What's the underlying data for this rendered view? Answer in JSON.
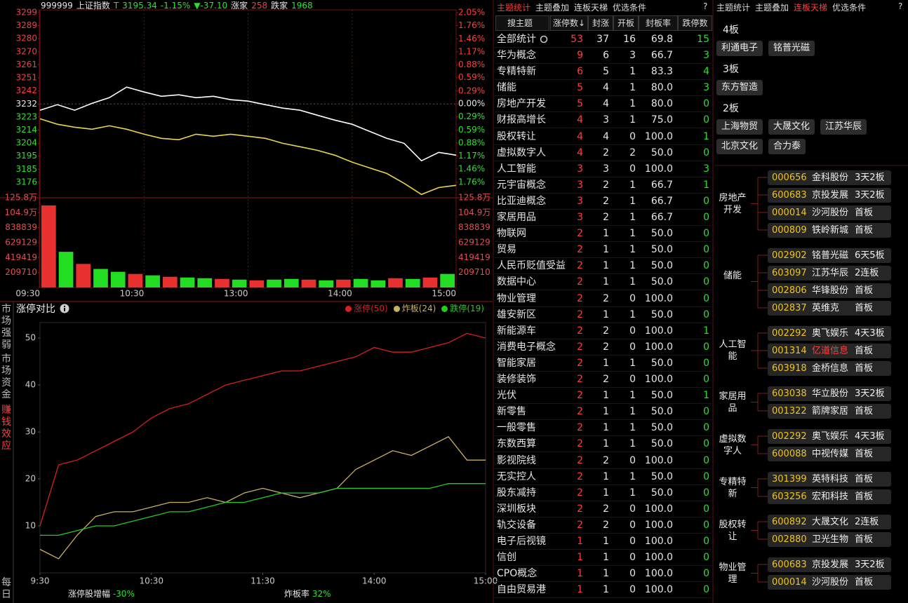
{
  "header": {
    "code": "999999",
    "name": "上证指数",
    "flag": "T",
    "price": "3195.34",
    "pct": "-1.15%",
    "change": "▼-37.10",
    "up_label": "涨家",
    "up_count": "258",
    "down_label": "跌家",
    "down_count": "1968"
  },
  "chart_data": [
    {
      "type": "line",
      "x": [
        0,
        10,
        20,
        30,
        40,
        50,
        60,
        70,
        80,
        90,
        100,
        110,
        120,
        130,
        140,
        150,
        160,
        170,
        180,
        190,
        200,
        210,
        220,
        230,
        240
      ],
      "xlim": [
        0,
        240
      ],
      "xticks": [
        {
          "value": 0,
          "label": "09:30"
        },
        {
          "value": 60,
          "label": "10:30"
        },
        {
          "value": 120,
          "label": "13:00"
        },
        {
          "value": 180,
          "label": "14:00"
        },
        {
          "value": 240,
          "label": "15:00"
        }
      ],
      "ylim": [
        3175.6,
        3298.7
      ],
      "yticks": [
        {
          "value": 3298.7,
          "label": "3299"
        },
        {
          "value": 3289.3,
          "label": "3289"
        },
        {
          "value": 3279.8,
          "label": "3280"
        },
        {
          "value": 3270.3,
          "label": "3270"
        },
        {
          "value": 3260.9,
          "label": "3261"
        },
        {
          "value": 3251.4,
          "label": "3251"
        },
        {
          "value": 3241.9,
          "label": "3242"
        },
        {
          "value": 3232.44,
          "label": "3232"
        },
        {
          "value": 3223.0,
          "label": "3223"
        },
        {
          "value": 3213.5,
          "label": "3214"
        },
        {
          "value": 3204.0,
          "label": "3204"
        },
        {
          "value": 3194.6,
          "label": "3195"
        },
        {
          "value": 3185.1,
          "label": "3185"
        },
        {
          "value": 3175.6,
          "label": "3176"
        }
      ],
      "y2lim": [
        -1.76,
        2.05
      ],
      "y2ticks": [
        {
          "value": 2.05,
          "label": "2.05%"
        },
        {
          "value": 1.76,
          "label": "1.76%"
        },
        {
          "value": 1.46,
          "label": "1.46%"
        },
        {
          "value": 1.17,
          "label": "1.17%"
        },
        {
          "value": 0.88,
          "label": "0.88%"
        },
        {
          "value": 0.59,
          "label": "0.59%"
        },
        {
          "value": 0.29,
          "label": "0.29%"
        },
        {
          "value": 0,
          "label": "0.00%"
        },
        {
          "value": -0.29,
          "label": "0.29%"
        },
        {
          "value": -0.59,
          "label": "0.59%"
        },
        {
          "value": -0.88,
          "label": "0.88%"
        },
        {
          "value": -1.17,
          "label": "1.17%"
        },
        {
          "value": -1.46,
          "label": "1.46%"
        },
        {
          "value": -1.76,
          "label": "1.76%"
        }
      ],
      "series": [
        {
          "color": "#ffffff",
          "values": [
            3227.9,
            3231.9,
            3227.9,
            3232.9,
            3237.0,
            3244.7,
            3241.1,
            3238.0,
            3239.1,
            3237.0,
            3238.0,
            3235.5,
            3234.5,
            3231.9,
            3229.4,
            3227.9,
            3224.3,
            3220.7,
            3217.7,
            3212.6,
            3207.5,
            3203.9,
            3191.2,
            3197.3,
            3195.3
          ]
        },
        {
          "color": "#e8d44d",
          "values": [
            3221.7,
            3217.7,
            3215.6,
            3214.1,
            3216.6,
            3214.1,
            3210.5,
            3207.5,
            3206.5,
            3210.5,
            3209.0,
            3210.5,
            3209.0,
            3207.5,
            3203.9,
            3201.4,
            3198.8,
            3195.3,
            3190.2,
            3186.1,
            3182.0,
            3174.9,
            3166.8,
            3171.8,
            3173.4
          ]
        }
      ],
      "volume": {
        "ylim": [
          0,
          1258000
        ],
        "yticks": [
          {
            "value": 1258000,
            "label": "125.8万"
          },
          {
            "value": 1049000,
            "label": "104.9万"
          },
          838839,
          629129,
          419419,
          209710
        ],
        "values": [
          1150000,
          500000,
          330000,
          260000,
          220000,
          190000,
          170000,
          150000,
          140000,
          130000,
          120000,
          110000,
          100000,
          110000,
          120000,
          110000,
          100000,
          110000,
          120000,
          100000,
          130000,
          120000,
          140000,
          190000
        ],
        "colors": [
          "#e8312f",
          "#22dd22",
          "#e8312f",
          "#22dd22",
          "#22dd22",
          "#e8312f",
          "#22dd22",
          "#e8312f",
          "#22dd22",
          "#22dd22",
          "#e8312f",
          "#22dd22",
          "#e8312f",
          "#22dd22",
          "#22dd22",
          "#e8312f",
          "#22dd22",
          "#e8312f",
          "#22dd22",
          "#22dd22",
          "#e8312f",
          "#22dd22",
          "#e8312f",
          "#22dd22"
        ]
      }
    },
    {
      "type": "line",
      "title": "涨停对比",
      "x": [
        0,
        10,
        20,
        30,
        40,
        50,
        60,
        70,
        80,
        90,
        100,
        110,
        120,
        130,
        140,
        150,
        160,
        170,
        180,
        190,
        200,
        210,
        220,
        230,
        240
      ],
      "xlim": [
        0,
        240
      ],
      "xticks": [
        {
          "value": 0,
          "label": "9:30"
        },
        {
          "value": 60,
          "label": "10:30"
        },
        {
          "value": 120,
          "label": "11:30"
        },
        {
          "value": 180,
          "label": "14:00"
        },
        {
          "value": 240,
          "label": "15:00"
        }
      ],
      "ylim": [
        0,
        53
      ],
      "yticks": [
        10,
        20,
        30,
        40,
        50
      ],
      "series": [
        {
          "name": "涨停(50)",
          "color": "#d42020",
          "values": [
            10,
            23,
            24,
            26,
            28,
            30,
            33,
            35,
            36,
            38,
            40,
            41,
            42,
            43,
            43,
            44,
            45,
            46,
            48,
            47,
            47,
            48,
            49,
            51,
            50
          ]
        },
        {
          "name": "炸板(24)",
          "color": "#c8b060",
          "values": [
            5,
            3,
            8,
            12,
            13,
            13,
            14,
            15,
            15,
            16,
            15,
            17,
            18,
            17,
            16,
            17,
            18,
            22,
            24,
            26,
            25,
            27,
            29,
            24,
            24
          ]
        },
        {
          "name": "跌停(19)",
          "color": "#22cc22",
          "values": [
            8,
            8,
            9,
            10,
            10,
            11,
            12,
            13,
            13,
            14,
            15,
            15,
            16,
            17,
            17,
            17,
            18,
            18,
            18,
            18,
            18,
            18,
            19,
            19,
            19
          ]
        }
      ]
    }
  ],
  "side_tabs": [
    "市场强弱",
    "市场资金",
    "赚钱效应",
    "每日"
  ],
  "bottom_stats": {
    "growth_label": "涨停股增幅",
    "growth": "-30%",
    "broken_label": "炸板率",
    "broken": "32%"
  },
  "theme_table": {
    "tabs": [
      "主题统计",
      "主题叠加",
      "连板天梯",
      "优选条件"
    ],
    "help": "?",
    "columns": [
      "搜主题",
      "涨停数↓",
      "封涨",
      "开板",
      "封板率",
      "跌停数"
    ],
    "total": [
      "全部统计",
      "53",
      "37",
      "16",
      "69.8",
      "15"
    ],
    "rows": [
      [
        "华为概念",
        "9",
        "6",
        "3",
        "66.7",
        "3"
      ],
      [
        "专精特新",
        "6",
        "5",
        "1",
        "83.3",
        "4"
      ],
      [
        "储能",
        "5",
        "4",
        "1",
        "80.0",
        "3"
      ],
      [
        "房地产开发",
        "5",
        "4",
        "1",
        "80.0",
        "0"
      ],
      [
        "财报高增长",
        "4",
        "3",
        "1",
        "75.0",
        "0"
      ],
      [
        "股权转让",
        "4",
        "4",
        "0",
        "100.0",
        "1"
      ],
      [
        "虚拟数字人",
        "4",
        "2",
        "2",
        "50.0",
        "0"
      ],
      [
        "人工智能",
        "3",
        "3",
        "0",
        "100.0",
        "3"
      ],
      [
        "元宇宙概念",
        "3",
        "2",
        "1",
        "66.7",
        "1"
      ],
      [
        "比亚迪概念",
        "3",
        "2",
        "1",
        "66.7",
        "0"
      ],
      [
        "家居用品",
        "3",
        "2",
        "1",
        "66.7",
        "0"
      ],
      [
        "物联网",
        "2",
        "1",
        "1",
        "50.0",
        "0"
      ],
      [
        "贸易",
        "2",
        "1",
        "1",
        "50.0",
        "0"
      ],
      [
        "人民币贬值受益",
        "2",
        "1",
        "1",
        "50.0",
        "0"
      ],
      [
        "数据中心",
        "2",
        "1",
        "1",
        "50.0",
        "0"
      ],
      [
        "物业管理",
        "2",
        "2",
        "0",
        "100.0",
        "0"
      ],
      [
        "雄安新区",
        "2",
        "1",
        "1",
        "50.0",
        "0"
      ],
      [
        "新能源车",
        "2",
        "2",
        "0",
        "100.0",
        "1"
      ],
      [
        "消费电子概念",
        "2",
        "2",
        "0",
        "100.0",
        "0"
      ],
      [
        "智能家居",
        "2",
        "1",
        "1",
        "50.0",
        "0"
      ],
      [
        "装修装饰",
        "2",
        "2",
        "0",
        "100.0",
        "0"
      ],
      [
        "光伏",
        "2",
        "1",
        "1",
        "50.0",
        "1"
      ],
      [
        "新零售",
        "2",
        "1",
        "1",
        "50.0",
        "0"
      ],
      [
        "一般零售",
        "2",
        "1",
        "1",
        "50.0",
        "0"
      ],
      [
        "东数西算",
        "2",
        "1",
        "1",
        "50.0",
        "0"
      ],
      [
        "影视院线",
        "2",
        "2",
        "0",
        "100.0",
        "0"
      ],
      [
        "无实控人",
        "2",
        "1",
        "1",
        "50.0",
        "0"
      ],
      [
        "股东减持",
        "2",
        "1",
        "1",
        "50.0",
        "0"
      ],
      [
        "深圳板块",
        "2",
        "2",
        "0",
        "100.0",
        "0"
      ],
      [
        "轨交设备",
        "2",
        "2",
        "0",
        "100.0",
        "0"
      ],
      [
        "电子后视镜",
        "1",
        "1",
        "0",
        "100.0",
        "0"
      ],
      [
        "信创",
        "1",
        "1",
        "0",
        "100.0",
        "0"
      ],
      [
        "CPO概念",
        "1",
        "1",
        "0",
        "100.0",
        "0"
      ],
      [
        "自由贸易港",
        "1",
        "1",
        "0",
        "100.0",
        "0"
      ]
    ]
  },
  "ladder_panel": {
    "tabs": [
      "主题统计",
      "主题叠加",
      "连板天梯",
      "优选条件"
    ],
    "help": "?",
    "levels": [
      {
        "label": "4板",
        "stocks": [
          "利通电子",
          "铭普光磁"
        ]
      },
      {
        "label": "3板",
        "stocks": [
          "东方智造"
        ]
      },
      {
        "label": "2板",
        "stocks": [
          "上海物贸",
          "大晟文化",
          "江苏华辰",
          "北京文化",
          "合力泰"
        ]
      }
    ],
    "groups": [
      {
        "theme": "房地产开发",
        "items": [
          {
            "code": "000656",
            "name": "金科股份",
            "board": "3天2板"
          },
          {
            "code": "600683",
            "name": "京投发展",
            "board": "3天2板"
          },
          {
            "code": "000014",
            "name": "沙河股份",
            "board": "首板"
          },
          {
            "code": "000809",
            "name": "铁岭新城",
            "board": "首板"
          }
        ]
      },
      {
        "theme": "储能",
        "items": [
          {
            "code": "002902",
            "name": "铭普光磁",
            "board": "6天5板"
          },
          {
            "code": "603097",
            "name": "江苏华辰",
            "board": "2连板"
          },
          {
            "code": "002806",
            "name": "华锋股份",
            "board": "首板"
          },
          {
            "code": "002837",
            "name": "英维克",
            "board": "首板"
          }
        ]
      },
      {
        "theme": "人工智能",
        "items": [
          {
            "code": "002292",
            "name": "奥飞娱乐",
            "board": "4天3板"
          },
          {
            "code": "001314",
            "name": "亿道信息",
            "board": "首板",
            "name_color": "#ff4040"
          },
          {
            "code": "603918",
            "name": "金桥信息",
            "board": "首板"
          }
        ]
      },
      {
        "theme": "家居用品",
        "items": [
          {
            "code": "603038",
            "name": "华立股份",
            "board": "3天2板"
          },
          {
            "code": "001322",
            "name": "箭牌家居",
            "board": "首板"
          }
        ]
      },
      {
        "theme": "虚拟数字人",
        "items": [
          {
            "code": "002292",
            "name": "奥飞娱乐",
            "board": "4天3板"
          },
          {
            "code": "600088",
            "name": "中视传媒",
            "board": "首板"
          }
        ]
      },
      {
        "theme": "专精特新",
        "items": [
          {
            "code": "301399",
            "name": "英特科技",
            "board": "首板"
          },
          {
            "code": "603256",
            "name": "宏和科技",
            "board": "首板"
          }
        ]
      },
      {
        "theme": "股权转让",
        "items": [
          {
            "code": "600892",
            "name": "大晟文化",
            "board": "2连板"
          },
          {
            "code": "002880",
            "name": "卫光生物",
            "board": "首板"
          }
        ]
      },
      {
        "theme": "物业管理",
        "items": [
          {
            "code": "600683",
            "name": "京投发展",
            "board": "3天2板"
          },
          {
            "code": "000014",
            "name": "沙河股份",
            "board": "首板"
          }
        ]
      }
    ]
  }
}
